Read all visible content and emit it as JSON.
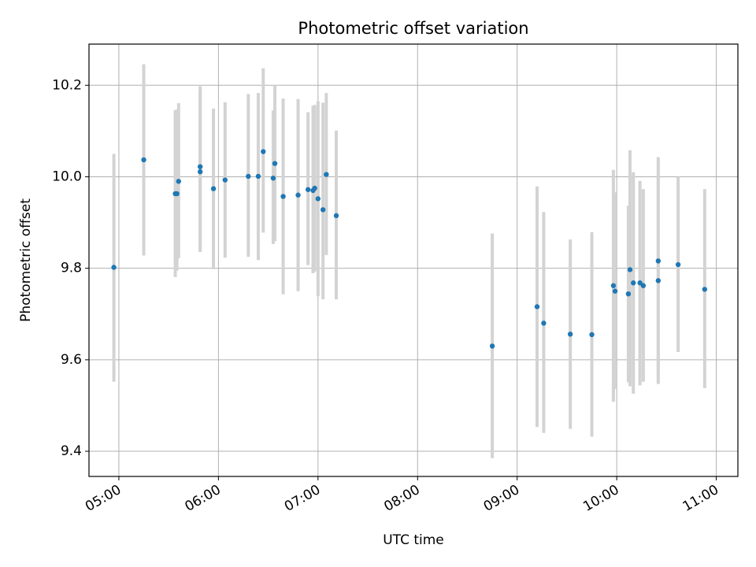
{
  "chart_data": {
    "type": "scatter",
    "title": "Photometric offset variation",
    "xlabel": "UTC time",
    "ylabel": "Photometric offset",
    "xlim": [
      "04:42",
      "11:13"
    ],
    "ylim": [
      9.345,
      10.29
    ],
    "grid": true,
    "legend": "none",
    "marker_color": "#1f77b4",
    "errorbar_color": "#d3d3d3",
    "x_ticks": [
      "05:00",
      "06:00",
      "07:00",
      "08:00",
      "09:00",
      "10:00",
      "11:00"
    ],
    "y_ticks": [
      "9.4",
      "9.6",
      "9.8",
      "10.0",
      "10.2"
    ],
    "series": [
      {
        "x": [
          "04:57",
          "05:15",
          "05:34",
          "05:35",
          "05:36",
          "05:49",
          "05:49",
          "05:57",
          "06:04",
          "06:18",
          "06:24",
          "06:27",
          "06:33",
          "06:34",
          "06:39",
          "06:48",
          "06:54",
          "06:57",
          "06:58",
          "07:00",
          "07:03",
          "07:05",
          "07:11",
          "08:45",
          "09:12",
          "09:16",
          "09:32",
          "09:45",
          "09:58",
          "09:59",
          "10:07",
          "10:08",
          "10:10",
          "10:14",
          "10:16",
          "10:25",
          "10:25",
          "10:37",
          "10:53"
        ],
        "y": [
          9.802,
          10.037,
          9.963,
          9.963,
          9.99,
          10.022,
          10.011,
          9.974,
          9.993,
          10.001,
          10.001,
          10.055,
          9.997,
          10.029,
          9.957,
          9.96,
          9.972,
          9.97,
          9.975,
          9.952,
          9.928,
          10.005,
          9.915,
          9.63,
          9.716,
          9.68,
          9.656,
          9.655,
          9.762,
          9.75,
          9.744,
          9.797,
          9.768,
          9.768,
          9.762,
          9.816,
          9.773,
          9.808,
          9.754
        ],
        "yerr_low": [
          9.552,
          9.828,
          9.781,
          9.795,
          9.822,
          9.836,
          9.836,
          9.798,
          9.823,
          9.825,
          9.818,
          9.878,
          9.853,
          9.859,
          9.743,
          9.75,
          9.807,
          9.789,
          9.793,
          9.739,
          9.732,
          9.829,
          9.732,
          9.385,
          9.453,
          9.44,
          9.449,
          9.432,
          9.508,
          9.536,
          9.551,
          9.542,
          9.526,
          9.544,
          9.552,
          9.547,
          9.568,
          9.617,
          9.538
        ],
        "yerr_high": [
          10.05,
          10.246,
          10.146,
          10.147,
          10.161,
          10.198,
          10.19,
          10.149,
          10.163,
          10.181,
          10.183,
          10.237,
          10.145,
          10.2,
          10.171,
          10.17,
          10.141,
          10.155,
          10.157,
          10.165,
          10.162,
          10.183,
          10.101,
          9.876,
          9.979,
          9.923,
          9.863,
          9.879,
          10.015,
          9.966,
          9.937,
          10.058,
          10.01,
          9.991,
          9.973,
          10.043,
          10.004,
          10.0,
          9.973
        ]
      }
    ]
  }
}
